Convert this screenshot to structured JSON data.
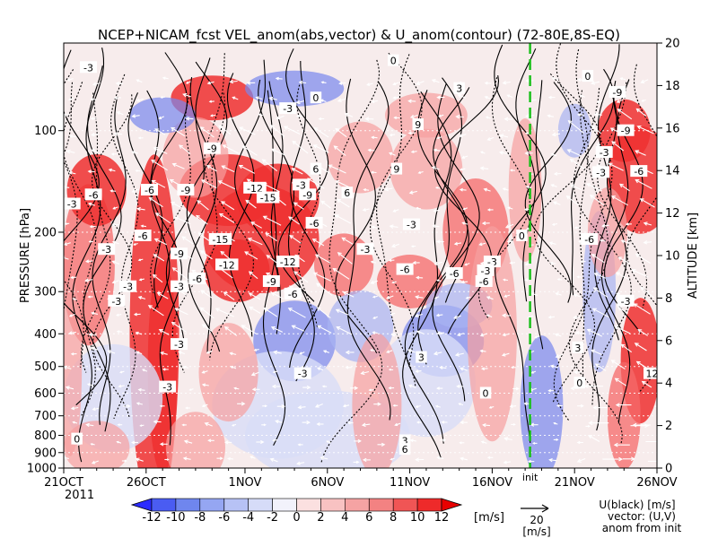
{
  "chart_data": {
    "type": "heatmap",
    "title": "NCEP+NICAM_fcst VEL_anom(abs,vector) & U_anom(contour)   (72-80E,8S-EQ)",
    "ylabel": "PRESSURE [hPa]",
    "y2label": "ALTITUDE [km]",
    "x_ticks": [
      {
        "label": "21OCT",
        "day": 0
      },
      {
        "label": "26OCT",
        "day": 5
      },
      {
        "label": "1NOV",
        "day": 11
      },
      {
        "label": "6NOV",
        "day": 16
      },
      {
        "label": "11NOV",
        "day": 21
      },
      {
        "label": "16NOV",
        "day": 26
      },
      {
        "label": "21NOV",
        "day": 31
      },
      {
        "label": "26NOV",
        "day": 36
      }
    ],
    "year_label": "2011",
    "init_day": 28.3,
    "init_label": "init",
    "xlim_days": [
      0,
      36
    ],
    "pressure_ticks": [
      100,
      200,
      300,
      400,
      500,
      600,
      700,
      800,
      900,
      1000
    ],
    "ylim_hpa": [
      1000,
      55
    ],
    "altitude_ticks": [
      0,
      2,
      4,
      6,
      8,
      10,
      12,
      14,
      16,
      18,
      20
    ],
    "ylim_km": [
      0,
      20
    ],
    "colorbar": {
      "ticks": [
        "-12",
        "-10",
        "-8",
        "-6",
        "-4",
        "-2",
        "0",
        "2",
        "4",
        "6",
        "8",
        "10",
        "12"
      ],
      "unit": "[m/s]",
      "colors": [
        "#2b2bff",
        "#4a5cf2",
        "#6f86ee",
        "#95a6f2",
        "#b7c2f5",
        "#d6dcf8",
        "#f2f2fb",
        "#fbe0e0",
        "#f8c2c2",
        "#f5a3a3",
        "#f38282",
        "#f05555",
        "#ee2a2a",
        "#e80000"
      ]
    },
    "vector_key": {
      "value": "20",
      "unit": "[m/s]"
    },
    "legend_text": [
      "U(black) [m/s]",
      "vector: (U,V)",
      "anom from init"
    ],
    "contour_labels": [
      {
        "t": "-3",
        "day": 1.5,
        "p": 65
      },
      {
        "t": "-3",
        "day": 13.6,
        "p": 86
      },
      {
        "t": "-9",
        "day": 9.0,
        "p": 113
      },
      {
        "t": "0",
        "day": 20.0,
        "p": 62
      },
      {
        "t": "0",
        "day": 15.3,
        "p": 80
      },
      {
        "t": "3",
        "day": 24.0,
        "p": 75
      },
      {
        "t": "9",
        "day": 21.5,
        "p": 96
      },
      {
        "t": "9",
        "day": 20.2,
        "p": 130
      },
      {
        "t": "6",
        "day": 15.3,
        "p": 130
      },
      {
        "t": "6",
        "day": 17.2,
        "p": 153
      },
      {
        "t": "-6",
        "day": 5.2,
        "p": 150
      },
      {
        "t": "-9",
        "day": 7.4,
        "p": 150
      },
      {
        "t": "-12",
        "day": 11.6,
        "p": 148
      },
      {
        "t": "-15",
        "day": 12.4,
        "p": 158
      },
      {
        "t": "-9",
        "day": 14.8,
        "p": 155
      },
      {
        "t": "-3",
        "day": 14.4,
        "p": 145
      },
      {
        "t": "-6",
        "day": 1.8,
        "p": 155
      },
      {
        "t": "-3",
        "day": 0.5,
        "p": 165
      },
      {
        "t": "-6",
        "day": 15.2,
        "p": 188
      },
      {
        "t": "-6",
        "day": 4.8,
        "p": 205
      },
      {
        "t": "-9",
        "day": 7.0,
        "p": 232
      },
      {
        "t": "-15",
        "day": 9.5,
        "p": 210
      },
      {
        "t": "-12",
        "day": 9.9,
        "p": 250
      },
      {
        "t": "-12",
        "day": 13.6,
        "p": 245
      },
      {
        "t": "-9",
        "day": 12.6,
        "p": 280
      },
      {
        "t": "-3",
        "day": 21.1,
        "p": 190
      },
      {
        "t": "-3",
        "day": 18.3,
        "p": 225
      },
      {
        "t": "-3",
        "day": 2.6,
        "p": 225
      },
      {
        "t": "-6",
        "day": 8.1,
        "p": 275
      },
      {
        "t": "-3",
        "day": 7.0,
        "p": 290
      },
      {
        "t": "-6",
        "day": 13.9,
        "p": 305
      },
      {
        "t": "-6",
        "day": 20.7,
        "p": 258
      },
      {
        "t": "-6",
        "day": 23.7,
        "p": 265
      },
      {
        "t": "-6",
        "day": 25.5,
        "p": 280
      },
      {
        "t": "-3",
        "day": 26.0,
        "p": 245
      },
      {
        "t": "-3",
        "day": 25.6,
        "p": 260
      },
      {
        "t": "-3",
        "day": 3.9,
        "p": 290
      },
      {
        "t": "-3",
        "day": 3.2,
        "p": 320
      },
      {
        "t": "3",
        "day": 21.7,
        "p": 470
      },
      {
        "t": "0",
        "day": 25.6,
        "p": 600
      },
      {
        "t": "-3",
        "day": 14.5,
        "p": 525
      },
      {
        "t": "-3",
        "day": 7.0,
        "p": 430
      },
      {
        "t": "-3",
        "day": 6.3,
        "p": 575
      },
      {
        "t": "0",
        "day": 0.8,
        "p": 820
      },
      {
        "t": "3",
        "day": 20.7,
        "p": 830
      },
      {
        "t": "6",
        "day": 20.7,
        "p": 880
      },
      {
        "t": "0",
        "day": 27.8,
        "p": 205
      },
      {
        "t": "-9",
        "day": 33.6,
        "p": 77
      },
      {
        "t": "-3",
        "day": 32.8,
        "p": 116
      },
      {
        "t": "-3",
        "day": 32.6,
        "p": 133
      },
      {
        "t": "-6",
        "day": 34.9,
        "p": 132
      },
      {
        "t": "-6",
        "day": 31.9,
        "p": 210
      },
      {
        "t": "-3",
        "day": 34.1,
        "p": 320
      },
      {
        "t": "0",
        "day": 31.3,
        "p": 560
      },
      {
        "t": "3",
        "day": 31.2,
        "p": 440
      },
      {
        "t": "12",
        "day": 35.7,
        "p": 525
      },
      {
        "t": "-9",
        "day": 34.1,
        "p": 100
      },
      {
        "t": "0",
        "day": 31.8,
        "p": 69
      }
    ]
  }
}
